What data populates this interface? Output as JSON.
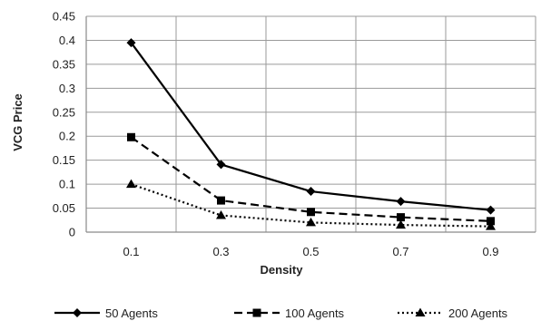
{
  "chart_data": {
    "type": "line",
    "xlabel": "Density",
    "ylabel": "VCG Price",
    "categories": [
      "0.1",
      "0.3",
      "0.5",
      "0.7",
      "0.9"
    ],
    "x": [
      0.1,
      0.3,
      0.5,
      0.7,
      0.9
    ],
    "ylim": [
      0,
      0.45
    ],
    "yticks": [
      "0",
      "0.05",
      "0.1",
      "0.15",
      "0.2",
      "0.25",
      "0.3",
      "0.35",
      "0.4",
      "0.45"
    ],
    "grid": true,
    "legend_position": "bottom",
    "series": [
      {
        "name": "50 Agents",
        "values": [
          0.395,
          0.141,
          0.085,
          0.064,
          0.046
        ],
        "marker": "diamond",
        "dash": "solid",
        "color": "#000000"
      },
      {
        "name": "100 Agents",
        "values": [
          0.198,
          0.066,
          0.042,
          0.031,
          0.023
        ],
        "marker": "square",
        "dash": "dashed",
        "color": "#000000"
      },
      {
        "name": "200 Agents",
        "values": [
          0.1,
          0.035,
          0.02,
          0.015,
          0.012
        ],
        "marker": "triangle",
        "dash": "dotted",
        "color": "#000000"
      }
    ]
  }
}
